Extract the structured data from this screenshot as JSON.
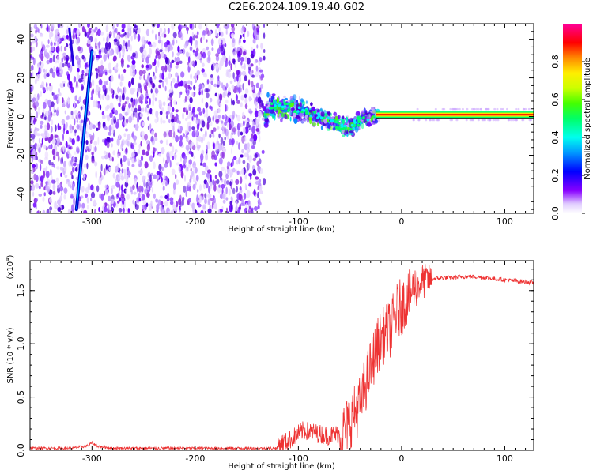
{
  "title": "C2E6.2024.109.19.40.G02",
  "chart_data": [
    {
      "type": "heatmap",
      "xlabel": "Height of straight line (km)",
      "ylabel": "Frequency (Hz)",
      "xlim": [
        -360,
        128
      ],
      "ylim": [
        -50,
        48
      ],
      "x_ticks": [
        -300,
        -200,
        -100,
        0,
        100
      ],
      "y_ticks": [
        -40,
        -20,
        0,
        20,
        40
      ],
      "colorbar": {
        "label": "Normalized spectral amplitude",
        "range": [
          0.0,
          1.0
        ],
        "ticks": [
          "0.0",
          "0.2",
          "0.4",
          "0.6",
          "0.8"
        ]
      },
      "features": {
        "noise_region_x": [
          -360,
          -133
        ],
        "tilted_line": {
          "from": [
            -315,
            -48
          ],
          "to": [
            -300,
            34
          ]
        },
        "signal_trace": [
          [
            -130,
            6
          ],
          [
            -110,
            5
          ],
          [
            -90,
            2
          ],
          [
            -70,
            -2
          ],
          [
            -55,
            -6
          ],
          [
            -45,
            -4
          ],
          [
            -35,
            0
          ],
          [
            -20,
            1
          ],
          [
            0,
            1
          ],
          [
            128,
            1
          ]
        ]
      }
    },
    {
      "type": "line",
      "xlabel": "Height of straight line (km)",
      "ylabel": "SNR (10 * v/v)",
      "scale_label": "(x10",
      "scale_exponent": "4",
      "ylabel_scale": "(x10^4)",
      "xlim": [
        -360,
        128
      ],
      "ylim": [
        0,
        1.78
      ],
      "x_ticks": [
        -300,
        -200,
        -100,
        0,
        100
      ],
      "y_ticks": [
        "0.0",
        "0.5",
        "1.0",
        "1.5"
      ],
      "y_tick_values": [
        0.0,
        0.5,
        1.0,
        1.5
      ],
      "color": "#ee3333",
      "series": [
        {
          "x": [
            -360,
            -340,
            -320,
            -305,
            -300,
            -295,
            -280,
            -250,
            -200,
            -150,
            -120,
            -110,
            -100,
            -95,
            -90,
            -80,
            -70,
            -60,
            -55,
            -50,
            -45,
            -40,
            -35,
            -30,
            -25,
            -20,
            -15,
            -10,
            -5,
            0,
            5,
            10,
            15,
            20,
            25,
            30,
            40,
            50,
            60,
            70,
            80,
            90,
            100,
            110,
            120,
            128
          ],
          "values": [
            0.02,
            0.02,
            0.02,
            0.04,
            0.07,
            0.04,
            0.02,
            0.02,
            0.02,
            0.02,
            0.02,
            0.05,
            0.12,
            0.15,
            0.14,
            0.12,
            0.1,
            0.12,
            0.2,
            0.28,
            0.35,
            0.45,
            0.62,
            0.78,
            0.95,
            1.05,
            1.1,
            1.15,
            1.3,
            1.35,
            1.42,
            1.5,
            1.55,
            1.58,
            1.6,
            1.61,
            1.62,
            1.62,
            1.63,
            1.63,
            1.62,
            1.61,
            1.6,
            1.59,
            1.58,
            1.57
          ]
        }
      ]
    }
  ]
}
